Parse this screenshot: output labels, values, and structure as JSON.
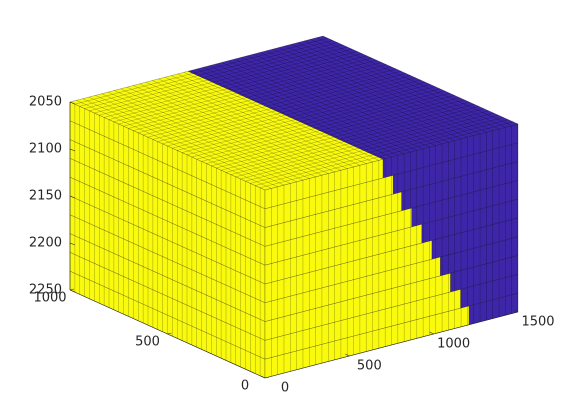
{
  "chart_data": {
    "type": "voxel3d",
    "z": [
      2050,
      2070,
      2090,
      2110,
      2130,
      2150,
      2170,
      2190,
      2210,
      2230
    ],
    "values": [
      700,
      760,
      810,
      870,
      930,
      990,
      1040,
      1100,
      1160,
      1210
    ],
    "colors": [
      "#f9fa0e",
      "#3e26a8"
    ],
    "xlim": [
      0,
      1500
    ],
    "xticks": [
      0,
      500,
      1000,
      1500
    ],
    "ylim": [
      0,
      1000
    ],
    "yticks": [
      0,
      500,
      1000
    ],
    "zlim": [
      2050,
      2250
    ],
    "zticks": [
      2050,
      2100,
      2150,
      2200,
      2250
    ],
    "zdir": "reverse"
  }
}
